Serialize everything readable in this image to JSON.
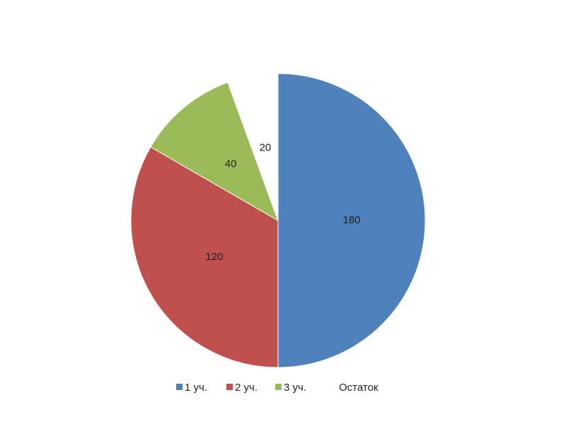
{
  "chart_data": {
    "type": "pie",
    "start_angle_deg": 0,
    "direction": "clockwise",
    "categories": [
      "1 уч.",
      "2 уч.",
      "3 уч.",
      "Остаток"
    ],
    "values": [
      180,
      120,
      40,
      20
    ],
    "colors": [
      "#4f81bd",
      "#c0504d",
      "#9bbb59",
      "#ffffff"
    ],
    "data_labels": [
      "180",
      "120",
      "40",
      "20"
    ],
    "legend_position": "bottom",
    "title": ""
  }
}
